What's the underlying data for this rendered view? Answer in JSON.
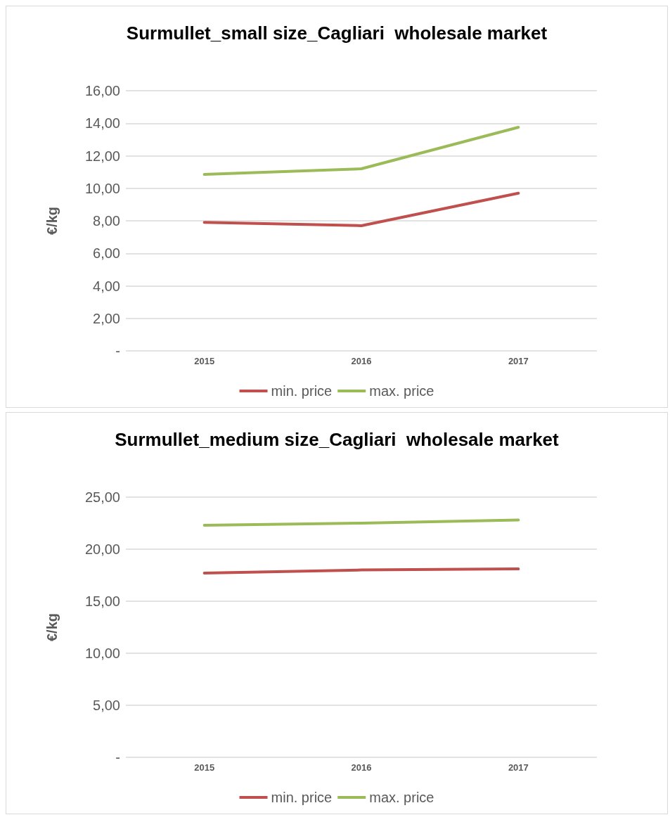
{
  "chart_data": [
    {
      "type": "line",
      "title": "Surmullet_small size_Cagliari  wholesale market",
      "ylabel": "€/kg",
      "categories": [
        "2015",
        "2016",
        "2017"
      ],
      "series": [
        {
          "name": "min. price",
          "color": "#c0504d",
          "values": [
            7.9,
            7.7,
            9.7
          ]
        },
        {
          "name": "max. price",
          "color": "#9bbb59",
          "values": [
            10.85,
            11.2,
            13.75
          ]
        }
      ],
      "ylim": [
        0,
        16
      ],
      "yticks": [
        {
          "value": 0,
          "label": "-"
        },
        {
          "value": 2,
          "label": "2,00"
        },
        {
          "value": 4,
          "label": "4,00"
        },
        {
          "value": 6,
          "label": "6,00"
        },
        {
          "value": 8,
          "label": "8,00"
        },
        {
          "value": 10,
          "label": "10,00"
        },
        {
          "value": 12,
          "label": "12,00"
        },
        {
          "value": 14,
          "label": "14,00"
        },
        {
          "value": 16,
          "label": "16,00"
        }
      ],
      "grid": "y",
      "legend": "bottom",
      "marker": "none",
      "line_style": "solid"
    },
    {
      "type": "line",
      "title": "Surmullet_medium size_Cagliari  wholesale market",
      "ylabel": "€/kg",
      "categories": [
        "2015",
        "2016",
        "2017"
      ],
      "series": [
        {
          "name": "min. price",
          "color": "#c0504d",
          "values": [
            17.7,
            18.0,
            18.1
          ]
        },
        {
          "name": "max. price",
          "color": "#9bbb59",
          "values": [
            22.3,
            22.5,
            22.8
          ]
        }
      ],
      "ylim": [
        0,
        25
      ],
      "yticks": [
        {
          "value": 0,
          "label": "-"
        },
        {
          "value": 5,
          "label": "5,00"
        },
        {
          "value": 10,
          "label": "10,00"
        },
        {
          "value": 15,
          "label": "15,00"
        },
        {
          "value": 20,
          "label": "20,00"
        },
        {
          "value": 25,
          "label": "25,00"
        }
      ],
      "grid": "y",
      "legend": "bottom",
      "marker": "none",
      "line_style": "solid"
    }
  ]
}
